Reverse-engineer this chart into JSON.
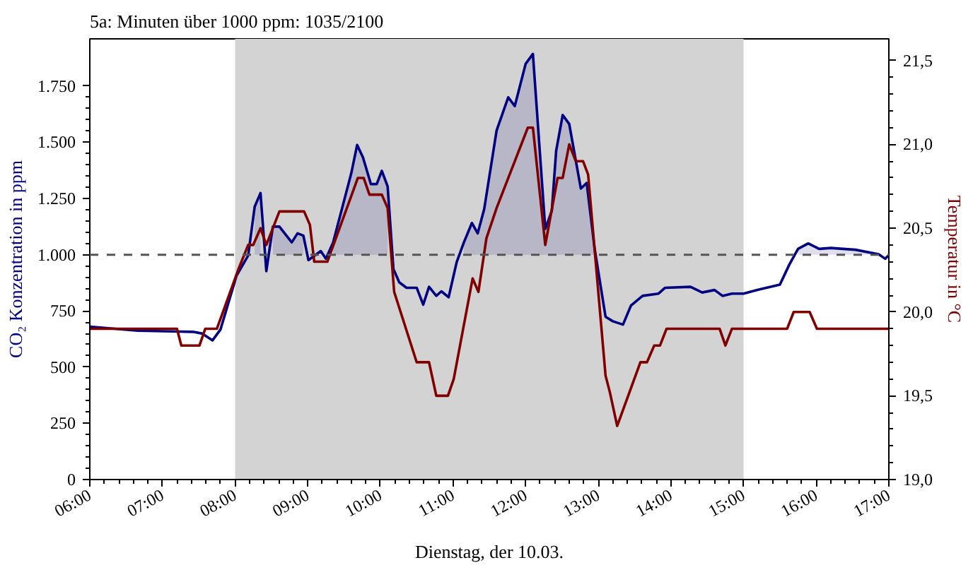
{
  "chart_data": {
    "type": "line",
    "title": "5a: Minuten über 1000 ppm: 1035/2100",
    "xlabel": "Dienstag, der 10.03.",
    "ylabel": "CO₂ Konzentration in ppm",
    "y2label": "Temperatur in °C",
    "xlim": [
      6,
      17
    ],
    "xticks": [
      {
        "value": 6,
        "label": "06:00"
      },
      {
        "value": 7,
        "label": "07:00"
      },
      {
        "value": 8,
        "label": "08:00"
      },
      {
        "value": 9,
        "label": "09:00"
      },
      {
        "value": 10,
        "label": "10:00"
      },
      {
        "value": 11,
        "label": "11:00"
      },
      {
        "value": 12,
        "label": "12:00"
      },
      {
        "value": 13,
        "label": "13:00"
      },
      {
        "value": 14,
        "label": "14:00"
      },
      {
        "value": 15,
        "label": "15:00"
      },
      {
        "value": 16,
        "label": "16:00"
      },
      {
        "value": 17,
        "label": "17:00"
      }
    ],
    "ylim": [
      0,
      1960
    ],
    "yticks": [
      0,
      250,
      500,
      750,
      {
        "value": 1000,
        "label": "1.000"
      },
      {
        "value": 1250,
        "label": "1.250"
      },
      {
        "value": 1500,
        "label": "1.500"
      },
      {
        "value": 1750,
        "label": "1.750"
      }
    ],
    "y2lim": [
      19.0,
      21.63
    ],
    "y2ticks": [
      {
        "value": 19.0,
        "label": "19,0"
      },
      {
        "value": 19.5,
        "label": "19,5"
      },
      {
        "value": 20.0,
        "label": "20,0"
      },
      {
        "value": 20.5,
        "label": "20,5"
      },
      {
        "value": 21.0,
        "label": "21,0"
      },
      {
        "value": 21.5,
        "label": "21,5"
      }
    ],
    "grid": false,
    "line_style": "solid",
    "marker": "none",
    "bands": [
      {
        "axis": "x",
        "from": 8,
        "to": 15,
        "color": "#d3d3d3"
      }
    ],
    "ref_lines": [
      {
        "axis": "y",
        "value": 1000,
        "color": "#555555",
        "line_style": "dashed"
      }
    ],
    "series": [
      {
        "color": "#000080",
        "x": [
          6.0,
          6.03,
          6.66,
          7.42,
          7.55,
          7.69,
          7.8,
          8.02,
          8.18,
          8.27,
          8.35,
          8.43,
          8.52,
          8.61,
          8.78,
          8.86,
          8.94,
          9.01,
          9.18,
          9.25,
          9.35,
          9.6,
          9.68,
          9.76,
          9.87,
          9.95,
          10.02,
          10.1,
          10.18,
          10.26,
          10.36,
          10.5,
          10.59,
          10.67,
          10.77,
          10.84,
          10.94,
          11.05,
          11.15,
          11.26,
          11.34,
          11.43,
          11.6,
          11.76,
          11.85,
          12.0,
          12.1,
          12.27,
          12.36,
          12.42,
          12.51,
          12.6,
          12.76,
          12.84,
          12.95,
          13.1,
          13.2,
          13.34,
          13.45,
          13.61,
          13.83,
          13.92,
          14.27,
          14.43,
          14.6,
          14.71,
          14.84,
          15.0,
          15.19,
          15.5,
          15.63,
          15.75,
          15.89,
          16.04,
          16.2,
          16.54,
          16.86,
          16.95,
          17.0
        ],
        "values": [
          680,
          679,
          662,
          657,
          649,
          619,
          668,
          907,
          996,
          1214,
          1274,
          927,
          1125,
          1125,
          1055,
          1095,
          1085,
          976,
          1016,
          982,
          1055,
          1363,
          1488,
          1433,
          1314,
          1314,
          1373,
          1304,
          936,
          877,
          853,
          853,
          778,
          857,
          817,
          837,
          811,
          966,
          1055,
          1141,
          1095,
          1204,
          1552,
          1700,
          1661,
          1849,
          1893,
          1115,
          1195,
          1462,
          1621,
          1581,
          1294,
          1319,
          1026,
          724,
          704,
          689,
          774,
          817,
          827,
          853,
          857,
          832,
          843,
          817,
          827,
          827,
          843,
          867,
          956,
          1026,
          1050,
          1026,
          1030,
          1022,
          1002,
          982,
          998
        ],
        "lower": [
          null,
          null,
          null,
          null,
          null,
          null,
          null,
          null,
          null,
          1000,
          1000,
          null,
          1000,
          1000,
          1000,
          1000,
          1000,
          null,
          null,
          null,
          1000,
          1000,
          1000,
          1000,
          1000,
          1000,
          1000,
          1000,
          null,
          null,
          null,
          null,
          null,
          null,
          null,
          null,
          null,
          null,
          1000,
          1000,
          1000,
          1000,
          1000,
          1000,
          1000,
          1000,
          1000,
          1000,
          1000,
          1000,
          1000,
          1000,
          1000,
          1000,
          1000,
          null,
          null,
          null,
          null,
          null,
          null,
          null,
          null,
          null,
          null,
          null,
          null,
          null,
          null,
          null,
          null,
          1000,
          1000,
          1000,
          1000,
          1000,
          1000,
          null,
          null
        ],
        "upper": [
          null,
          null,
          null,
          null,
          null,
          null,
          null,
          null,
          null,
          1214,
          1274,
          null,
          1125,
          1125,
          1055,
          1095,
          1085,
          null,
          null,
          null,
          1055,
          1363,
          1488,
          1433,
          1314,
          1314,
          1373,
          1304,
          null,
          null,
          null,
          null,
          null,
          null,
          null,
          null,
          null,
          null,
          1055,
          1141,
          1095,
          1204,
          1552,
          1700,
          1661,
          1849,
          1893,
          1115,
          1195,
          1462,
          1621,
          1581,
          1294,
          1319,
          1026,
          null,
          null,
          null,
          null,
          null,
          null,
          null,
          null,
          null,
          null,
          null,
          null,
          null,
          null,
          null,
          null,
          1026,
          1050,
          1026,
          1030,
          1022,
          1002,
          null,
          null
        ]
      },
      {
        "color": "#800000",
        "axis": "y2",
        "x": [
          6.0,
          7.2,
          7.26,
          7.51,
          7.59,
          7.75,
          8.05,
          8.18,
          8.25,
          8.35,
          8.43,
          8.61,
          8.95,
          9.03,
          9.09,
          9.27,
          9.69,
          9.77,
          9.85,
          10.02,
          10.1,
          10.19,
          10.5,
          10.67,
          10.77,
          10.93,
          11.01,
          11.27,
          11.35,
          11.46,
          11.6,
          12.03,
          12.1,
          12.27,
          12.44,
          12.51,
          12.6,
          12.69,
          12.79,
          12.86,
          13.1,
          13.16,
          13.26,
          13.58,
          13.67,
          13.77,
          13.85,
          13.94,
          14.67,
          14.75,
          14.84,
          15.6,
          15.69,
          15.91,
          16.01,
          17.0
        ],
        "values": [
          19.9,
          19.9,
          19.8,
          19.8,
          19.9,
          19.9,
          20.26,
          20.4,
          20.4,
          20.5,
          20.4,
          20.6,
          20.6,
          20.52,
          20.3,
          20.3,
          20.8,
          20.8,
          20.7,
          20.7,
          20.62,
          20.12,
          19.7,
          19.7,
          19.5,
          19.5,
          19.6,
          20.2,
          20.12,
          20.44,
          20.62,
          21.1,
          21.1,
          20.4,
          20.8,
          20.8,
          21.0,
          20.9,
          20.9,
          20.82,
          19.62,
          19.52,
          19.32,
          19.7,
          19.7,
          19.8,
          19.8,
          19.9,
          19.9,
          19.8,
          19.9,
          19.9,
          20.0,
          20.0,
          19.9,
          19.9
        ]
      }
    ]
  }
}
